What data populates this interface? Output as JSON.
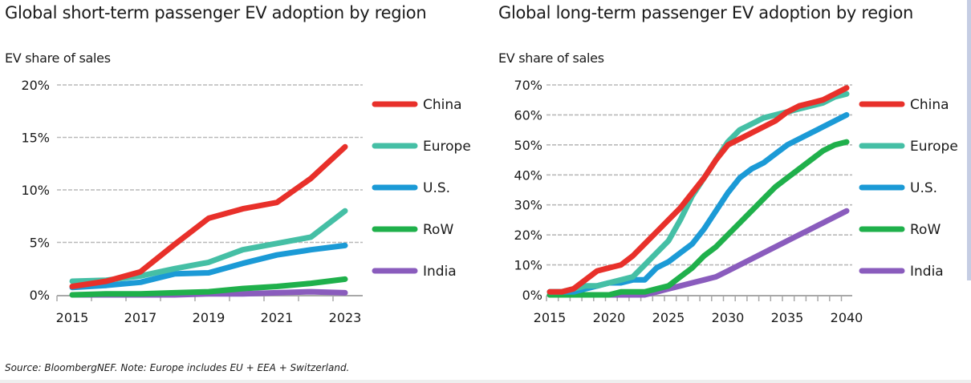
{
  "source_note": "Source: BloombergNEF. Note: Europe includes EU + EEA + Switzerland.",
  "chart_data": [
    {
      "type": "line",
      "title": "Global short-term passenger EV adoption by region",
      "ylabel": "EV share of sales",
      "xlabel": "",
      "x": [
        2015,
        2016,
        2017,
        2018,
        2019,
        2020,
        2021,
        2022,
        2023
      ],
      "xticks": [
        "2015",
        "2017",
        "2019",
        "2021",
        "2023"
      ],
      "yticks": [
        "0%",
        "5%",
        "10%",
        "15%",
        "20%"
      ],
      "ylim": [
        0,
        20
      ],
      "grid": true,
      "legend_position": "right",
      "series": [
        {
          "name": "China",
          "color": "#e8302a",
          "values": [
            0.8,
            1.3,
            2.2,
            4.8,
            7.3,
            8.2,
            8.8,
            11.1,
            14.1
          ]
        },
        {
          "name": "Europe",
          "color": "#45bfa5",
          "values": [
            1.3,
            1.4,
            1.8,
            2.5,
            3.1,
            4.3,
            4.9,
            5.5,
            8.0
          ]
        },
        {
          "name": "U.S.",
          "color": "#1b9ad6",
          "values": [
            0.7,
            0.9,
            1.2,
            2.0,
            2.1,
            3.0,
            3.8,
            4.3,
            4.7
          ]
        },
        {
          "name": "RoW",
          "color": "#1fb04b",
          "values": [
            0.0,
            0.1,
            0.1,
            0.2,
            0.3,
            0.6,
            0.8,
            1.1,
            1.5
          ]
        },
        {
          "name": "India",
          "color": "#8a5cbd",
          "values": [
            0.0,
            0.0,
            0.0,
            0.0,
            0.1,
            0.1,
            0.2,
            0.3,
            0.2
          ]
        }
      ]
    },
    {
      "type": "line",
      "title": "Global long-term passenger EV adoption by region",
      "ylabel": "EV share of sales",
      "xlabel": "",
      "x": [
        2015,
        2016,
        2017,
        2018,
        2019,
        2020,
        2021,
        2022,
        2023,
        2024,
        2025,
        2026,
        2027,
        2028,
        2029,
        2030,
        2031,
        2032,
        2033,
        2034,
        2035,
        2036,
        2037,
        2038,
        2039,
        2040
      ],
      "xticks": [
        "2015",
        "2020",
        "2025",
        "2030",
        "2035",
        "2040"
      ],
      "yticks": [
        "0%",
        "10%",
        "20%",
        "30%",
        "40%",
        "50%",
        "60%",
        "70%"
      ],
      "ylim": [
        0,
        70
      ],
      "grid": true,
      "legend_position": "right",
      "series": [
        {
          "name": "China",
          "color": "#e8302a",
          "values": [
            1,
            1,
            2,
            5,
            8,
            9,
            10,
            13,
            17,
            21,
            25,
            29,
            34,
            39,
            45,
            50,
            52,
            54,
            56,
            58,
            61,
            63,
            64,
            65,
            67,
            69
          ]
        },
        {
          "name": "Europe",
          "color": "#45bfa5",
          "values": [
            1,
            1,
            2,
            3,
            3,
            4,
            5,
            6,
            10,
            14,
            18,
            25,
            33,
            39,
            45,
            51,
            55,
            57,
            59,
            60,
            61,
            62,
            63,
            64,
            66,
            67
          ]
        },
        {
          "name": "U.S.",
          "color": "#1b9ad6",
          "values": [
            1,
            1,
            1,
            2,
            3,
            4,
            4,
            5,
            5,
            9,
            11,
            14,
            17,
            22,
            28,
            34,
            39,
            42,
            44,
            47,
            50,
            52,
            54,
            56,
            58,
            60
          ]
        },
        {
          "name": "RoW",
          "color": "#1fb04b",
          "values": [
            0,
            0,
            0,
            0,
            0,
            0,
            1,
            1,
            1,
            2,
            3,
            6,
            9,
            13,
            16,
            20,
            24,
            28,
            32,
            36,
            39,
            42,
            45,
            48,
            50,
            51
          ]
        },
        {
          "name": "India",
          "color": "#8a5cbd",
          "values": [
            0,
            0,
            0,
            0,
            0,
            0,
            0,
            0,
            0,
            1,
            2,
            3,
            4,
            5,
            6,
            8,
            10,
            12,
            14,
            16,
            18,
            20,
            22,
            24,
            26,
            28
          ]
        }
      ]
    }
  ]
}
